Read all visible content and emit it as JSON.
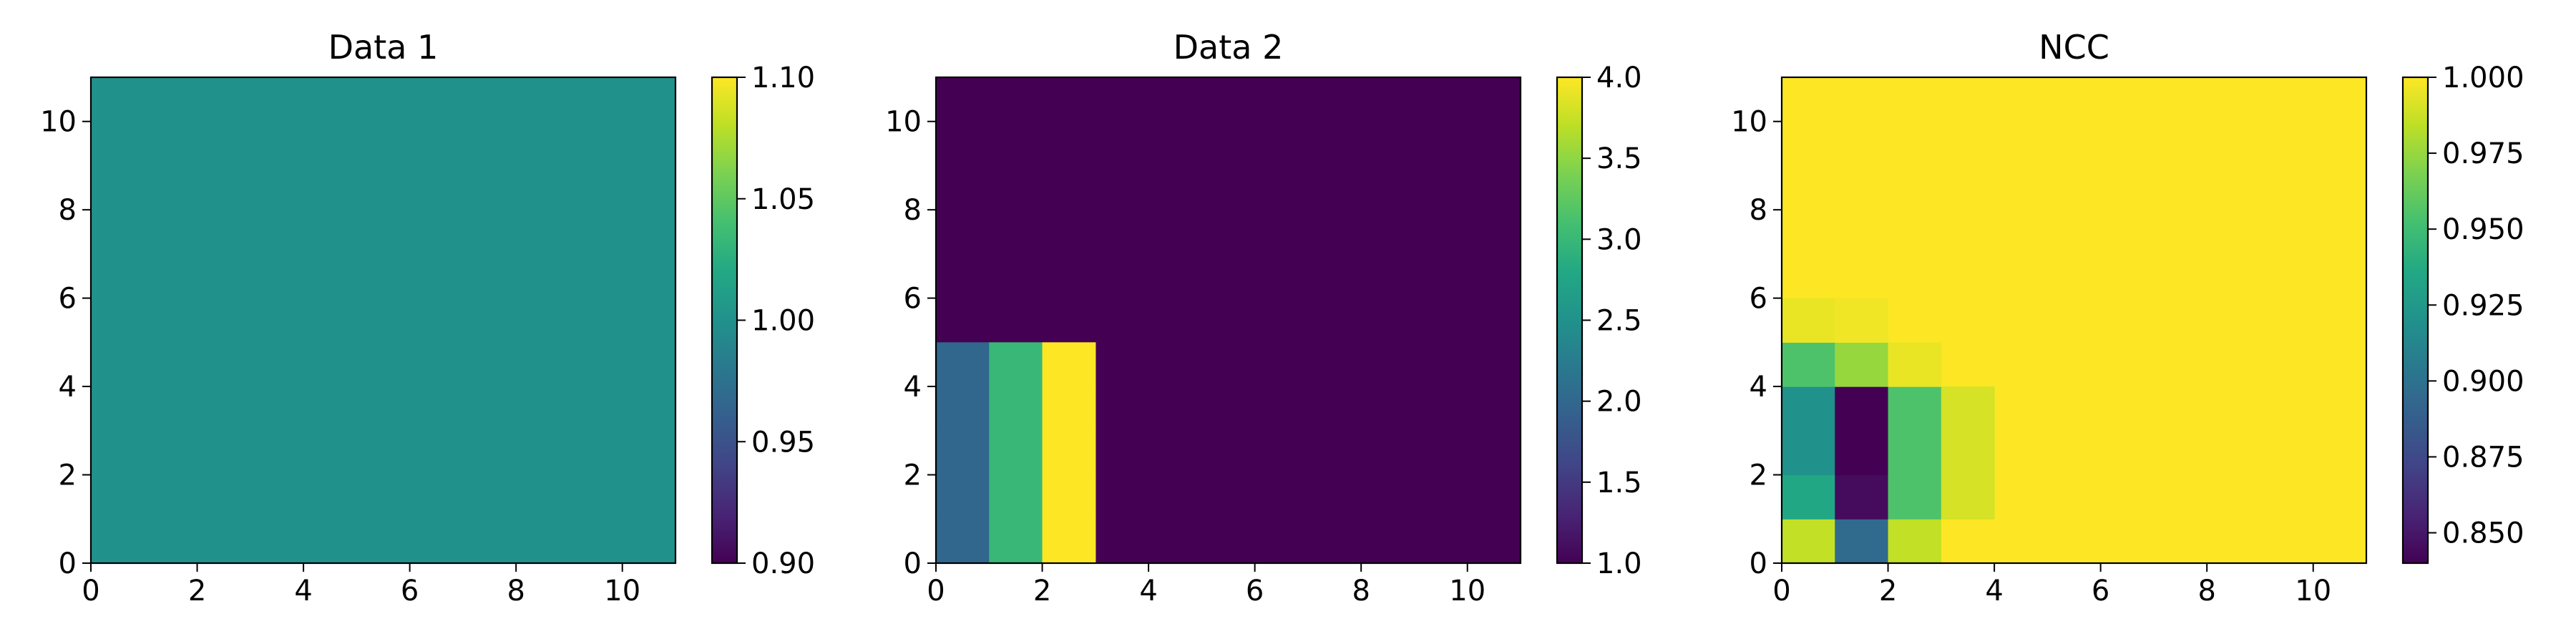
{
  "figure": {
    "background": "#ffffff"
  },
  "chart_data": [
    {
      "type": "heatmap",
      "title": "Data 1",
      "xlim": [
        0,
        11
      ],
      "ylim": [
        0,
        11
      ],
      "xticks": [
        "0",
        "2",
        "4",
        "6",
        "8",
        "10"
      ],
      "yticks": [
        "0",
        "2",
        "4",
        "6",
        "8",
        "10"
      ],
      "colormap": "viridis",
      "clim": [
        0.9,
        1.1
      ],
      "colorbar_ticks": [
        "0.90",
        "0.95",
        "1.00",
        "1.05",
        "1.10"
      ],
      "default_value": 1.0,
      "cells": []
    },
    {
      "type": "heatmap",
      "title": "Data 2",
      "xlim": [
        0,
        11
      ],
      "ylim": [
        0,
        11
      ],
      "xticks": [
        "0",
        "2",
        "4",
        "6",
        "8",
        "10"
      ],
      "yticks": [
        "0",
        "2",
        "4",
        "6",
        "8",
        "10"
      ],
      "colormap": "viridis",
      "clim": [
        1.0,
        4.0
      ],
      "colorbar_ticks": [
        "1.0",
        "1.5",
        "2.0",
        "2.5",
        "3.0",
        "3.5",
        "4.0"
      ],
      "default_value": 1.0,
      "cells": [
        {
          "x": 0,
          "y": 0,
          "v": 2
        },
        {
          "x": 0,
          "y": 1,
          "v": 2
        },
        {
          "x": 0,
          "y": 2,
          "v": 2
        },
        {
          "x": 0,
          "y": 3,
          "v": 2
        },
        {
          "x": 0,
          "y": 4,
          "v": 2
        },
        {
          "x": 1,
          "y": 0,
          "v": 3
        },
        {
          "x": 1,
          "y": 1,
          "v": 3
        },
        {
          "x": 1,
          "y": 2,
          "v": 3
        },
        {
          "x": 1,
          "y": 3,
          "v": 3
        },
        {
          "x": 1,
          "y": 4,
          "v": 3
        },
        {
          "x": 2,
          "y": 0,
          "v": 4
        },
        {
          "x": 2,
          "y": 1,
          "v": 4
        },
        {
          "x": 2,
          "y": 2,
          "v": 4
        },
        {
          "x": 2,
          "y": 3,
          "v": 4
        },
        {
          "x": 2,
          "y": 4,
          "v": 4
        }
      ]
    },
    {
      "type": "heatmap",
      "title": "NCC",
      "xlim": [
        0,
        11
      ],
      "ylim": [
        0,
        11
      ],
      "xticks": [
        "0",
        "2",
        "4",
        "6",
        "8",
        "10"
      ],
      "yticks": [
        "0",
        "2",
        "4",
        "6",
        "8",
        "10"
      ],
      "colormap": "viridis",
      "clim": [
        0.84,
        1.0
      ],
      "colorbar_ticks": [
        "0.850",
        "0.875",
        "0.900",
        "0.925",
        "0.950",
        "0.975",
        "1.000"
      ],
      "default_value": 1.0,
      "cells": [
        {
          "x": 0,
          "y": 0,
          "v": 0.985
        },
        {
          "x": 1,
          "y": 0,
          "v": 0.895
        },
        {
          "x": 2,
          "y": 0,
          "v": 0.985
        },
        {
          "x": 3,
          "y": 0,
          "v": 1.0
        },
        {
          "x": 0,
          "y": 1,
          "v": 0.935
        },
        {
          "x": 1,
          "y": 1,
          "v": 0.845
        },
        {
          "x": 2,
          "y": 1,
          "v": 0.955
        },
        {
          "x": 3,
          "y": 1,
          "v": 0.99
        },
        {
          "x": 0,
          "y": 2,
          "v": 0.92
        },
        {
          "x": 1,
          "y": 2,
          "v": 0.84
        },
        {
          "x": 2,
          "y": 2,
          "v": 0.955
        },
        {
          "x": 3,
          "y": 2,
          "v": 0.99
        },
        {
          "x": 0,
          "y": 3,
          "v": 0.92
        },
        {
          "x": 1,
          "y": 3,
          "v": 0.84
        },
        {
          "x": 2,
          "y": 3,
          "v": 0.955
        },
        {
          "x": 3,
          "y": 3,
          "v": 0.99
        },
        {
          "x": 0,
          "y": 4,
          "v": 0.955
        },
        {
          "x": 1,
          "y": 4,
          "v": 0.975
        },
        {
          "x": 2,
          "y": 4,
          "v": 0.995
        },
        {
          "x": 0,
          "y": 5,
          "v": 0.995
        },
        {
          "x": 1,
          "y": 5,
          "v": 0.997
        }
      ]
    }
  ]
}
